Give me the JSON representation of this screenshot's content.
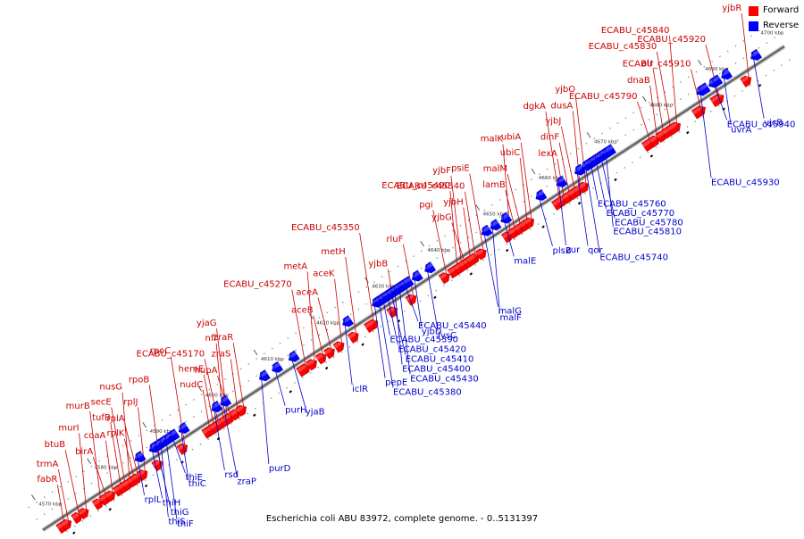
{
  "legend": {
    "forward_label": "Forward",
    "reverse_label": "Reverse",
    "forward_color": "#ff0000",
    "reverse_color": "#0000ff"
  },
  "caption": "Escherichia coli ABU 83972, complete genome. - 0..5131397",
  "colors": {
    "forward": "#ff0000",
    "reverse": "#0000ff",
    "label_forward": "#cc0000",
    "label_reverse": "#0000cc",
    "backbone": "#666666"
  },
  "scale": {
    "unit": "kbp",
    "start": 4570,
    "end": 4700,
    "step": 10,
    "ticks": [
      "4570 kbp",
      "4580 kbp",
      "4590 kbp",
      "4600 kbp",
      "4610 kbp",
      "4620 kbp",
      "4630 kbp",
      "4640 kbp",
      "4650 kbp",
      "4660 kbp",
      "4670 kbp",
      "4680 kbp",
      "4690 kbp",
      "4700 kbp"
    ]
  },
  "forward_genes": [
    {
      "name": "fabR",
      "pos": 4571.3
    },
    {
      "name": "trmA",
      "pos": 4572.1
    },
    {
      "name": "btuB",
      "pos": 4574.0
    },
    {
      "name": "murI",
      "pos": 4575.2
    },
    {
      "name": "murB",
      "pos": 4577.8
    },
    {
      "name": "birA",
      "pos": 4579.0
    },
    {
      "name": "coaA",
      "pos": 4580.0
    },
    {
      "name": "tufB",
      "pos": 4581.5
    },
    {
      "name": "secE",
      "pos": 4582.3
    },
    {
      "name": "nusG",
      "pos": 4583.0
    },
    {
      "name": "rplK",
      "pos": 4584.0
    },
    {
      "name": "rplA",
      "pos": 4584.7
    },
    {
      "name": "rplJ",
      "pos": 4585.8
    },
    {
      "name": "rpoB",
      "pos": 4588.5
    },
    {
      "name": "rpoC",
      "pos": 4593.0
    },
    {
      "name": "nudC",
      "pos": 4597.5
    },
    {
      "name": "hemE",
      "pos": 4598.3
    },
    {
      "name": "ECABU_c45170",
      "pos": 4599.1
    },
    {
      "name": "nfi",
      "pos": 4599.9
    },
    {
      "name": "yjaG",
      "pos": 4600.6
    },
    {
      "name": "hupA",
      "pos": 4601.4
    },
    {
      "name": "zraS",
      "pos": 4602.5
    },
    {
      "name": "zraR",
      "pos": 4603.6
    },
    {
      "name": "ECABU_c45270",
      "pos": 4614.8
    },
    {
      "name": "metA",
      "pos": 4616.3
    },
    {
      "name": "aceB",
      "pos": 4618.0
    },
    {
      "name": "aceA",
      "pos": 4619.5
    },
    {
      "name": "aceK",
      "pos": 4621.2
    },
    {
      "name": "metH",
      "pos": 4623.8
    },
    {
      "name": "ECABU_c45350",
      "pos": 4627.0
    },
    {
      "name": "yjbB",
      "pos": 4630.8
    },
    {
      "name": "rluF",
      "pos": 4634.2
    },
    {
      "name": "pgi",
      "pos": 4640.2
    },
    {
      "name": "ECABU_c45490",
      "pos": 4642.0
    },
    {
      "name": "yjbF",
      "pos": 4642.8
    },
    {
      "name": "yjbG",
      "pos": 4643.6
    },
    {
      "name": "yjbH",
      "pos": 4644.4
    },
    {
      "name": "ECABU_c45540",
      "pos": 4645.3
    },
    {
      "name": "psiE",
      "pos": 4646.8
    },
    {
      "name": "malK",
      "pos": 4651.5
    },
    {
      "name": "lamB",
      "pos": 4652.6
    },
    {
      "name": "malM",
      "pos": 4653.6
    },
    {
      "name": "ubiC",
      "pos": 4654.6
    },
    {
      "name": "ubiA",
      "pos": 4655.4
    },
    {
      "name": "dgkA",
      "pos": 4660.5
    },
    {
      "name": "lexA",
      "pos": 4661.3
    },
    {
      "name": "dinF",
      "pos": 4662.3
    },
    {
      "name": "yjbJ",
      "pos": 4663.3
    },
    {
      "name": "dusA",
      "pos": 4664.1
    },
    {
      "name": "yjbO",
      "pos": 4665.2
    },
    {
      "name": "ECABU_c45790",
      "pos": 4677.0
    },
    {
      "name": "dnaB",
      "pos": 4678.0
    },
    {
      "name": "alr",
      "pos": 4679.2
    },
    {
      "name": "ECABU_c45830",
      "pos": 4680.5
    },
    {
      "name": "ECABU_c45840",
      "pos": 4681.5
    },
    {
      "name": "ECABU_c45910",
      "pos": 4686.0
    },
    {
      "name": "ECABU_c45920",
      "pos": 4689.3
    },
    {
      "name": "yjbR",
      "pos": 4694.5
    }
  ],
  "reverse_genes": [
    {
      "name": "rplL",
      "pos": 4586.6
    },
    {
      "name": "thiH",
      "pos": 4589.2
    },
    {
      "name": "thiG",
      "pos": 4590.0
    },
    {
      "name": "thiS",
      "pos": 4590.9
    },
    {
      "name": "thiF",
      "pos": 4591.8
    },
    {
      "name": "thiE",
      "pos": 4592.7
    },
    {
      "name": "thiC",
      "pos": 4594.5
    },
    {
      "name": "rsd",
      "pos": 4600.4
    },
    {
      "name": "zraP",
      "pos": 4602.0
    },
    {
      "name": "purD",
      "pos": 4609.0
    },
    {
      "name": "purH",
      "pos": 4611.3
    },
    {
      "name": "yjaB",
      "pos": 4614.3
    },
    {
      "name": "iclR",
      "pos": 4624.0
    },
    {
      "name": "pepE",
      "pos": 4629.3
    },
    {
      "name": "ECABU_c45380",
      "pos": 4630.1
    },
    {
      "name": "ECABU_c45390",
      "pos": 4630.8
    },
    {
      "name": "ECABU_c45420",
      "pos": 4631.6
    },
    {
      "name": "ECABU_c45410",
      "pos": 4632.3
    },
    {
      "name": "ECABU_c45400",
      "pos": 4633.0
    },
    {
      "name": "ECABU_c45430",
      "pos": 4633.8
    },
    {
      "name": "ECABU_c45440",
      "pos": 4634.6
    },
    {
      "name": "yjbD",
      "pos": 4636.5
    },
    {
      "name": "lysC",
      "pos": 4638.8
    },
    {
      "name": "malG",
      "pos": 4649.0
    },
    {
      "name": "malF",
      "pos": 4650.6
    },
    {
      "name": "malE",
      "pos": 4652.5
    },
    {
      "name": "plsB",
      "pos": 4658.8
    },
    {
      "name": "zur",
      "pos": 4662.5
    },
    {
      "name": "qor",
      "pos": 4665.8
    },
    {
      "name": "ECABU_c45740",
      "pos": 4667.3
    },
    {
      "name": "ECABU_c45760",
      "pos": 4668.2
    },
    {
      "name": "ECABU_c45770",
      "pos": 4669.1
    },
    {
      "name": "ECABU_c45780",
      "pos": 4670.0
    },
    {
      "name": "ECABU_c45810",
      "pos": 4671.0
    },
    {
      "name": "ECABU_c45930",
      "pos": 4688.0
    },
    {
      "name": "ECABU_c45940",
      "pos": 4690.2
    },
    {
      "name": "uvrA",
      "pos": 4692.2
    },
    {
      "name": "yjcB",
      "pos": 4697.5
    }
  ]
}
